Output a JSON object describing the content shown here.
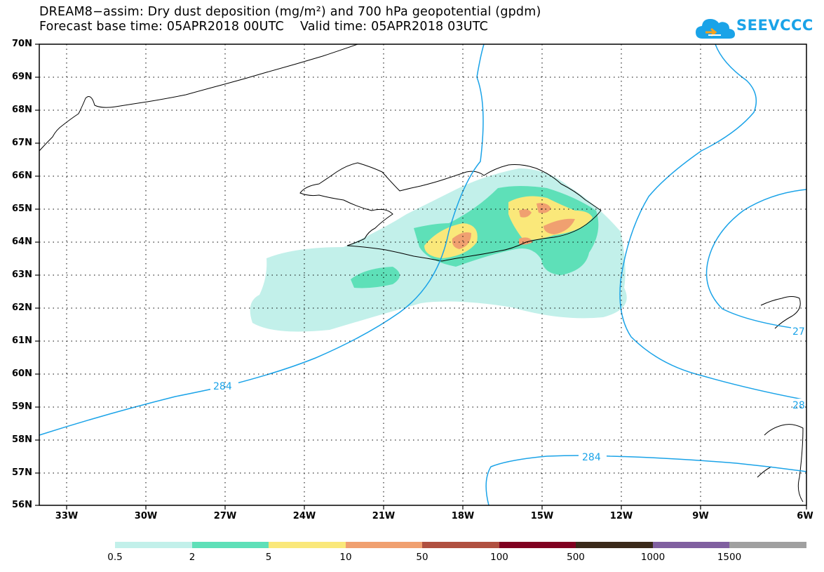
{
  "header": {
    "title_line1": "DREAM8−assim: Dry dust deposition (mg/m²) and 700 hPa geopotential (gpdm)",
    "title_line2": "Forecast base time: 05APR2018 00UTC    Valid time: 05APR2018 03UTC"
  },
  "logo": {
    "text": "SEEVCCC",
    "icon": "cloud-icon",
    "color": "#1aa3e8"
  },
  "axes": {
    "lat_labels": [
      "70N",
      "69N",
      "68N",
      "67N",
      "66N",
      "65N",
      "64N",
      "63N",
      "62N",
      "61N",
      "60N",
      "59N",
      "58N",
      "57N",
      "56N"
    ],
    "lon_labels": [
      "33W",
      "30W",
      "27W",
      "24W",
      "21W",
      "18W",
      "15W",
      "12W",
      "9W",
      "6W"
    ],
    "lat_range": [
      56,
      70
    ],
    "lon_range": [
      -34.5,
      -6
    ],
    "grid": "dotted"
  },
  "contours": {
    "color": "#1aa3e8",
    "labels": [
      "284",
      "284",
      "27",
      "28"
    ]
  },
  "colorbar": {
    "labels": [
      "0.5",
      "2",
      "5",
      "10",
      "50",
      "100",
      "500",
      "1000",
      "1500"
    ],
    "colors": [
      "#c2f0ea",
      "#5ee0b8",
      "#fae87a",
      "#f0a070",
      "#b05040",
      "#800020",
      "#3a2a1a",
      "#8060a0",
      "#a0a0a0"
    ]
  }
}
